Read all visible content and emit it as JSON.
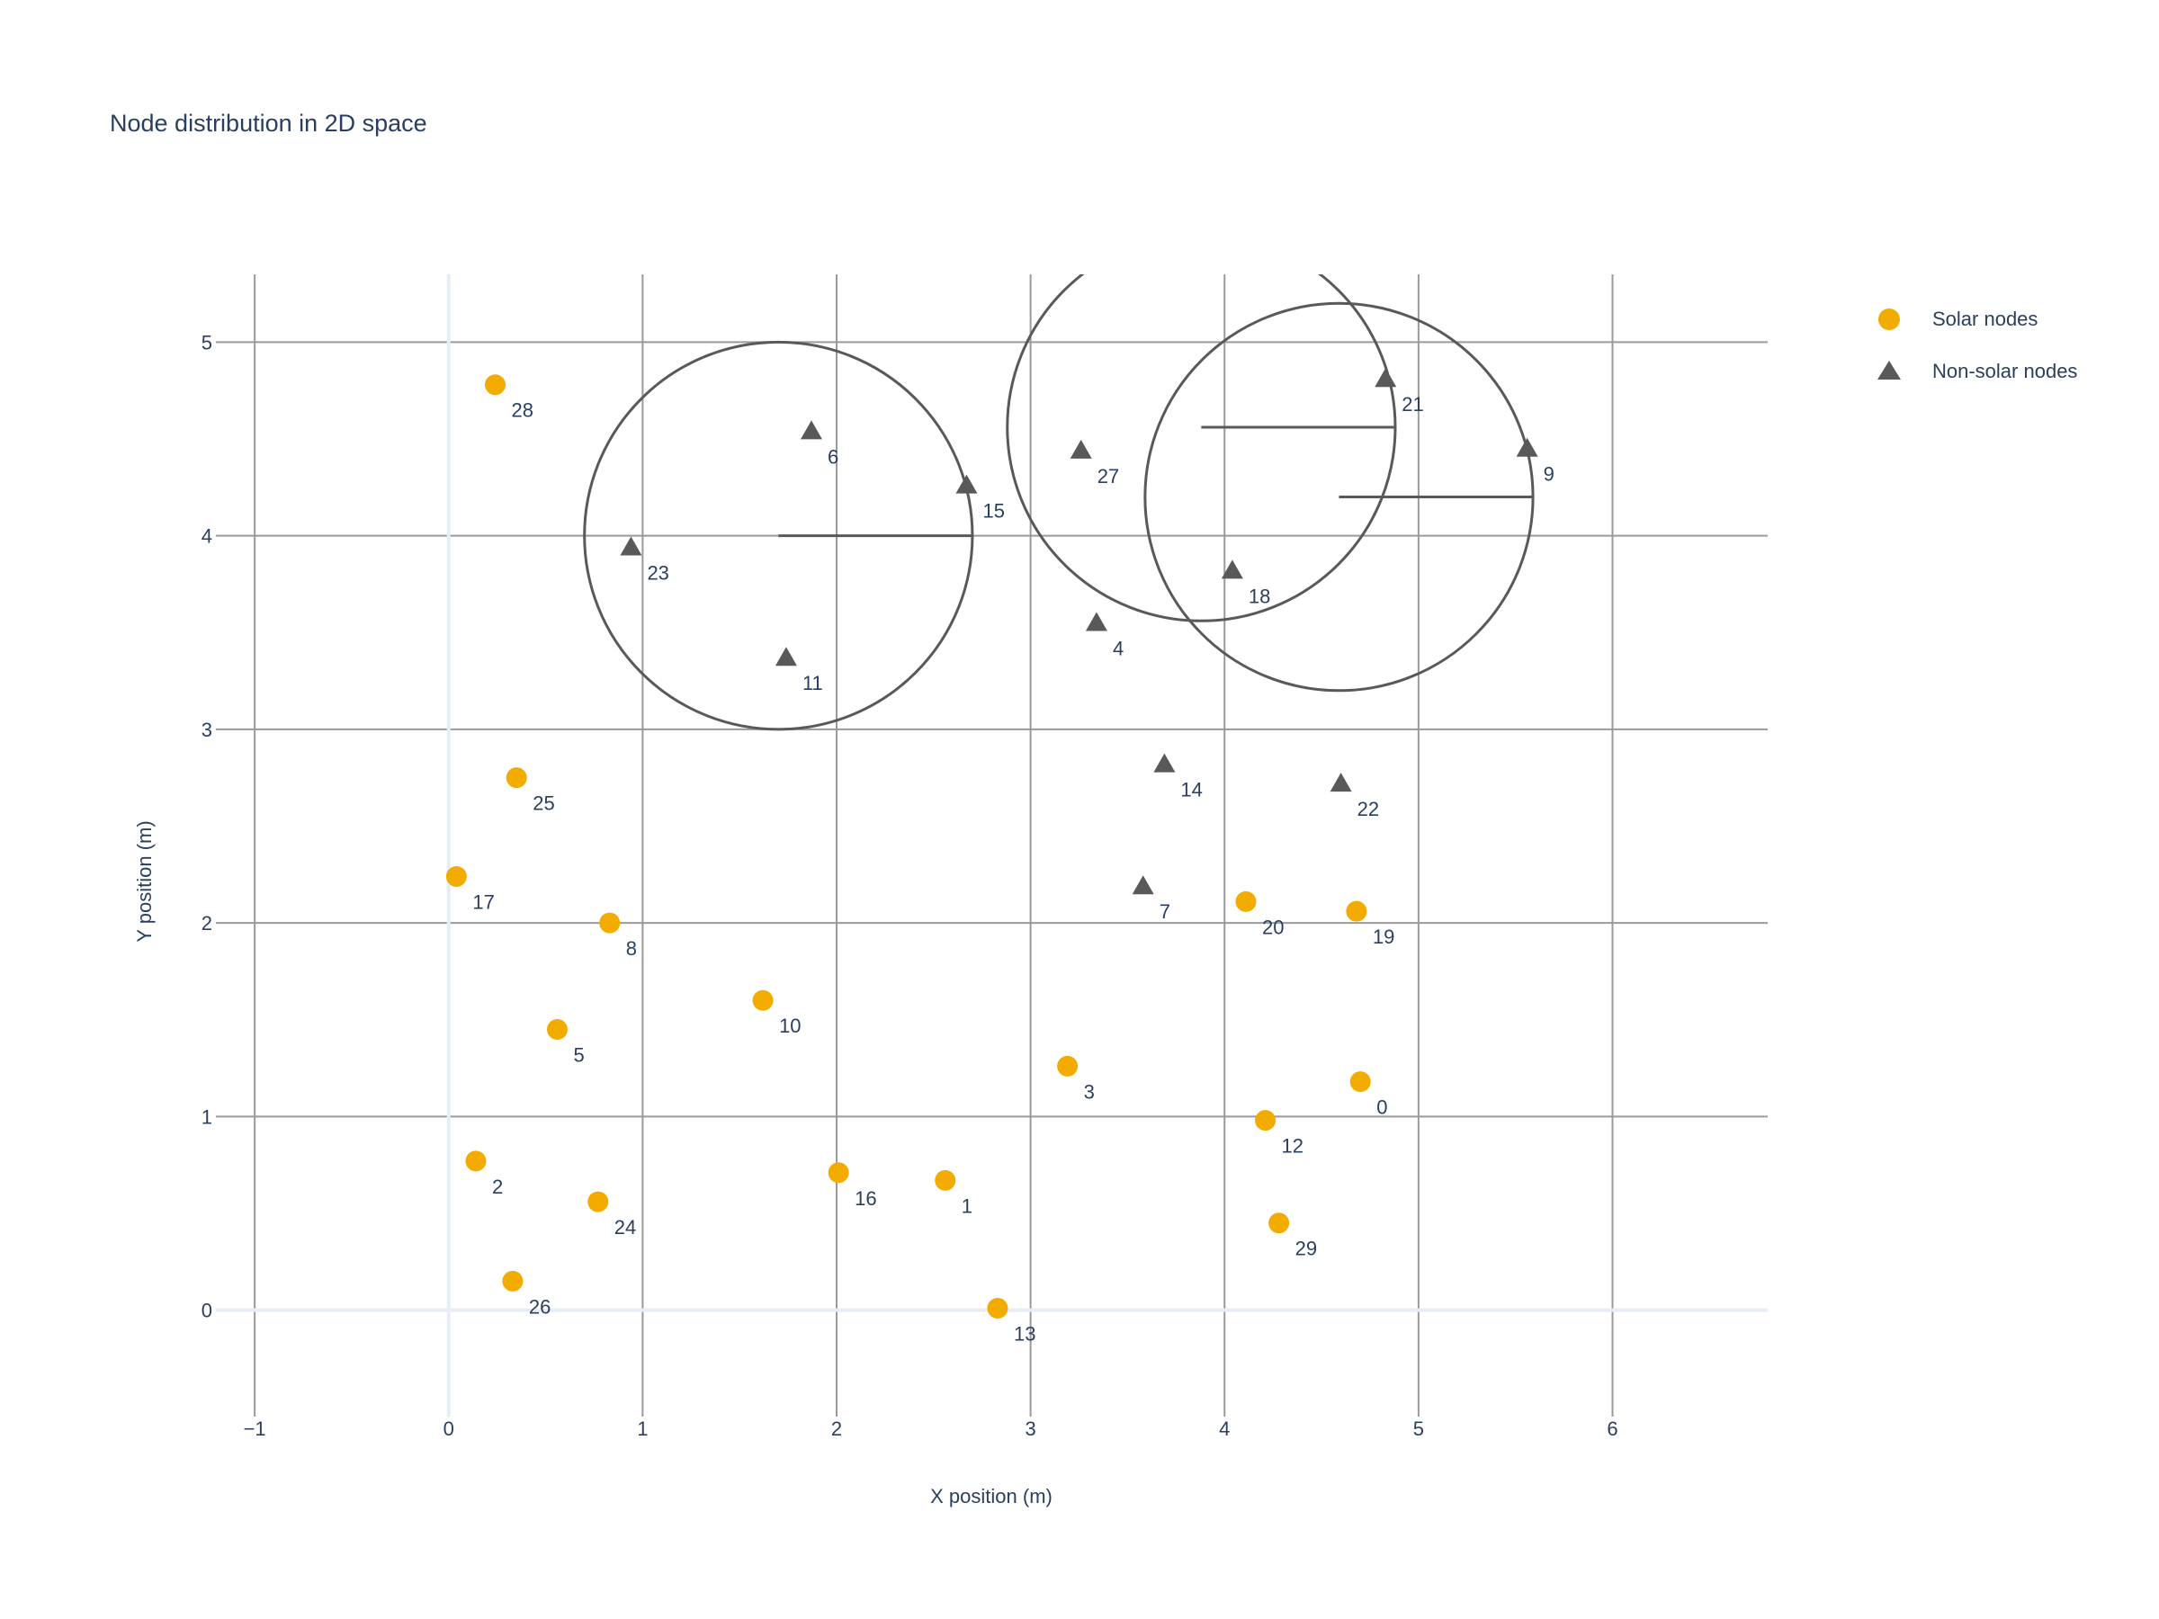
{
  "chart_data": {
    "type": "scatter",
    "title": "Node distribution in 2D space",
    "xlabel": "X position (m)",
    "ylabel": "Y position (m)",
    "xlim": [
      -1.2,
      6.8
    ],
    "ylim": [
      -0.55,
      5.35
    ],
    "x_ticks": [
      -1,
      0,
      1,
      2,
      3,
      4,
      5,
      6
    ],
    "x_tick_labels": [
      "−1",
      "0",
      "1",
      "2",
      "3",
      "4",
      "5",
      "6"
    ],
    "y_ticks": [
      0,
      1,
      2,
      3,
      4,
      5
    ],
    "y_tick_labels": [
      "0",
      "1",
      "2",
      "3",
      "4",
      "5"
    ],
    "grid": true,
    "legend_position": "top-right",
    "series": [
      {
        "name": "Solar nodes",
        "marker": "circle",
        "color": "#f2ac00",
        "points": [
          {
            "id": "0",
            "x": 4.7,
            "y": 1.18
          },
          {
            "id": "1",
            "x": 2.56,
            "y": 0.67
          },
          {
            "id": "2",
            "x": 0.14,
            "y": 0.77
          },
          {
            "id": "3",
            "x": 3.19,
            "y": 1.26
          },
          {
            "id": "5",
            "x": 0.56,
            "y": 1.45
          },
          {
            "id": "8",
            "x": 0.83,
            "y": 2.0
          },
          {
            "id": "10",
            "x": 1.62,
            "y": 1.6
          },
          {
            "id": "12",
            "x": 4.21,
            "y": 0.98
          },
          {
            "id": "13",
            "x": 2.83,
            "y": 0.01
          },
          {
            "id": "16",
            "x": 2.01,
            "y": 0.71
          },
          {
            "id": "17",
            "x": 0.04,
            "y": 2.24
          },
          {
            "id": "19",
            "x": 4.68,
            "y": 2.06
          },
          {
            "id": "20",
            "x": 4.11,
            "y": 2.11
          },
          {
            "id": "24",
            "x": 0.77,
            "y": 0.56
          },
          {
            "id": "25",
            "x": 0.35,
            "y": 2.75
          },
          {
            "id": "26",
            "x": 0.33,
            "y": 0.15
          },
          {
            "id": "28",
            "x": 0.24,
            "y": 4.78
          },
          {
            "id": "29",
            "x": 4.28,
            "y": 0.45
          }
        ]
      },
      {
        "name": "Non-solar nodes",
        "marker": "triangle-up",
        "color": "#595959",
        "points": [
          {
            "id": "4",
            "x": 3.34,
            "y": 3.55
          },
          {
            "id": "6",
            "x": 1.87,
            "y": 4.54
          },
          {
            "id": "7",
            "x": 3.58,
            "y": 2.19
          },
          {
            "id": "9",
            "x": 5.56,
            "y": 4.45
          },
          {
            "id": "11",
            "x": 1.74,
            "y": 3.37
          },
          {
            "id": "14",
            "x": 3.69,
            "y": 2.82
          },
          {
            "id": "15",
            "x": 2.67,
            "y": 4.26
          },
          {
            "id": "18",
            "x": 4.04,
            "y": 3.82
          },
          {
            "id": "21",
            "x": 4.83,
            "y": 4.81
          },
          {
            "id": "22",
            "x": 4.6,
            "y": 2.72
          },
          {
            "id": "23",
            "x": 0.94,
            "y": 3.94
          },
          {
            "id": "27",
            "x": 3.26,
            "y": 4.44
          }
        ]
      }
    ],
    "circles": [
      {
        "center_x": 1.7,
        "center_y": 4.0,
        "radius": 1.0
      },
      {
        "center_x": 3.88,
        "center_y": 4.56,
        "radius": 1.0
      },
      {
        "center_x": 4.59,
        "center_y": 4.2,
        "radius": 1.0
      }
    ],
    "circle_color": "#595959"
  }
}
